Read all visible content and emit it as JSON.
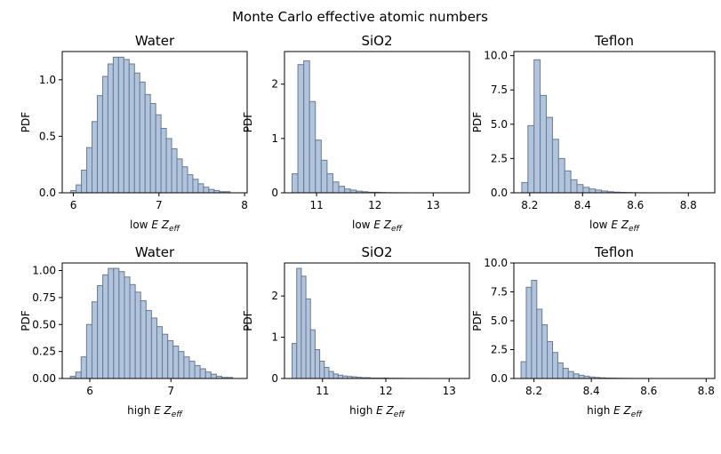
{
  "figure": {
    "suptitle": "Monte Carlo effective atomic numbers"
  },
  "style": {
    "bar_fill": "#b0c4de",
    "bar_edge": "#6b7a8f",
    "axis_color": "#000000"
  },
  "chart_data": [
    {
      "type": "bar",
      "title": "Water",
      "ylabel": "PDF",
      "xlabel_prefix": "low ",
      "xlabel_var": "E",
      "xlabel_z": "Z",
      "xlabel_sub": "eff",
      "xlim": [
        5.87,
        8.03
      ],
      "ylim": [
        0,
        1.25
      ],
      "xticks": [
        6,
        7,
        8
      ],
      "xtick_labels": [
        "6",
        "7",
        "8"
      ],
      "yticks": [
        0,
        0.5,
        1.0
      ],
      "ytick_labels": [
        "0.0",
        "0.5",
        "1.0"
      ],
      "bin_start": 5.97,
      "bin_width": 0.062,
      "values": [
        0.02,
        0.07,
        0.2,
        0.4,
        0.63,
        0.86,
        1.03,
        1.14,
        1.2,
        1.2,
        1.18,
        1.14,
        1.06,
        0.98,
        0.87,
        0.79,
        0.69,
        0.57,
        0.48,
        0.39,
        0.3,
        0.23,
        0.16,
        0.12,
        0.08,
        0.05,
        0.03,
        0.02,
        0.01,
        0.01
      ]
    },
    {
      "type": "bar",
      "title": "SiO2",
      "ylabel": "PDF",
      "xlabel_prefix": "low ",
      "xlabel_var": "E",
      "xlabel_z": "Z",
      "xlabel_sub": "eff",
      "xlim": [
        10.45,
        13.62
      ],
      "ylim": [
        0,
        2.6
      ],
      "xticks": [
        11,
        12,
        13
      ],
      "xtick_labels": [
        "11",
        "12",
        "13"
      ],
      "yticks": [
        0,
        1,
        2
      ],
      "ytick_labels": [
        "0",
        "1",
        "2"
      ],
      "bin_start": 10.58,
      "bin_width": 0.1,
      "values": [
        0.35,
        2.36,
        2.43,
        1.68,
        0.97,
        0.6,
        0.35,
        0.2,
        0.12,
        0.07,
        0.05,
        0.03,
        0.02,
        0.01,
        0.01,
        0.005,
        0.003,
        0.002,
        0.001,
        0.001
      ]
    },
    {
      "type": "bar",
      "title": "Teflon",
      "ylabel": "PDF",
      "xlabel_prefix": "low ",
      "xlabel_var": "E",
      "xlabel_z": "Z",
      "xlabel_sub": "eff",
      "xlim": [
        8.14,
        8.9
      ],
      "ylim": [
        0,
        10.3
      ],
      "xticks": [
        8.2,
        8.4,
        8.6,
        8.8
      ],
      "xtick_labels": [
        "8.2",
        "8.4",
        "8.6",
        "8.8"
      ],
      "yticks": [
        0,
        2.5,
        5.0,
        7.5,
        10.0
      ],
      "ytick_labels": [
        "0.0",
        "2.5",
        "5.0",
        "7.5",
        "10.0"
      ],
      "bin_start": 8.17,
      "bin_width": 0.0232,
      "values": [
        0.75,
        4.9,
        9.7,
        7.1,
        5.5,
        3.9,
        2.5,
        1.6,
        0.95,
        0.6,
        0.4,
        0.28,
        0.2,
        0.13,
        0.08,
        0.05,
        0.03,
        0.02,
        0.01,
        0.005,
        0.003,
        0.002,
        0.001,
        0.001,
        0.001,
        0.001,
        0.001,
        0.001,
        0.001,
        0.001
      ]
    },
    {
      "type": "bar",
      "title": "Water",
      "ylabel": "PDF",
      "xlabel_prefix": "high ",
      "xlabel_var": "E",
      "xlabel_z": "Z",
      "xlabel_sub": "eff",
      "xlim": [
        5.66,
        7.94
      ],
      "ylim": [
        0,
        1.07
      ],
      "xticks": [
        6,
        7
      ],
      "xtick_labels": [
        "6",
        "7"
      ],
      "yticks": [
        0,
        0.25,
        0.5,
        0.75,
        1.0
      ],
      "ytick_labels": [
        "0.00",
        "0.25",
        "0.50",
        "0.75",
        "1.00"
      ],
      "bin_start": 5.76,
      "bin_width": 0.0667,
      "values": [
        0.02,
        0.06,
        0.2,
        0.5,
        0.71,
        0.86,
        0.96,
        1.02,
        1.02,
        0.99,
        0.94,
        0.87,
        0.8,
        0.72,
        0.63,
        0.56,
        0.48,
        0.41,
        0.35,
        0.3,
        0.25,
        0.2,
        0.16,
        0.12,
        0.09,
        0.06,
        0.04,
        0.02,
        0.01,
        0.01
      ]
    },
    {
      "type": "bar",
      "title": "SiO2",
      "ylabel": "PDF",
      "xlabel_prefix": "high ",
      "xlabel_var": "E",
      "xlabel_z": "Z",
      "xlabel_sub": "eff",
      "xlim": [
        10.4,
        13.32
      ],
      "ylim": [
        0,
        2.8
      ],
      "xticks": [
        11,
        12,
        13
      ],
      "xtick_labels": [
        "11",
        "12",
        "13"
      ],
      "yticks": [
        0,
        1,
        2
      ],
      "ytick_labels": [
        "0",
        "1",
        "2"
      ],
      "bin_start": 10.52,
      "bin_width": 0.0727,
      "values": [
        0.85,
        2.67,
        2.48,
        1.93,
        1.18,
        0.7,
        0.42,
        0.27,
        0.17,
        0.11,
        0.08,
        0.06,
        0.05,
        0.04,
        0.03,
        0.02,
        0.02,
        0.01,
        0.01,
        0.01,
        0.01,
        0.005,
        0.005,
        0.005,
        0.003,
        0.002,
        0.002,
        0.001,
        0.001,
        0.001
      ]
    },
    {
      "type": "bar",
      "title": "Teflon",
      "ylabel": "PDF",
      "xlabel_prefix": "high ",
      "xlabel_var": "E",
      "xlabel_z": "Z",
      "xlabel_sub": "eff",
      "xlim": [
        8.13,
        8.83
      ],
      "ylim": [
        0,
        10.0
      ],
      "xticks": [
        8.2,
        8.4,
        8.6,
        8.8
      ],
      "xtick_labels": [
        "8.2",
        "8.4",
        "8.6",
        "8.8"
      ],
      "yticks": [
        0,
        2.5,
        5.0,
        7.5,
        10.0
      ],
      "ytick_labels": [
        "0.0",
        "2.5",
        "5.0",
        "7.5",
        "10.0"
      ],
      "bin_start": 8.155,
      "bin_width": 0.0183,
      "values": [
        1.45,
        7.9,
        8.5,
        6.0,
        4.65,
        3.2,
        2.25,
        1.35,
        0.88,
        0.6,
        0.4,
        0.28,
        0.2,
        0.13,
        0.09,
        0.06,
        0.04,
        0.03,
        0.02,
        0.015,
        0.01,
        0.008,
        0.006,
        0.005,
        0.004,
        0.003,
        0.002,
        0.002,
        0.001,
        0.001
      ]
    }
  ]
}
